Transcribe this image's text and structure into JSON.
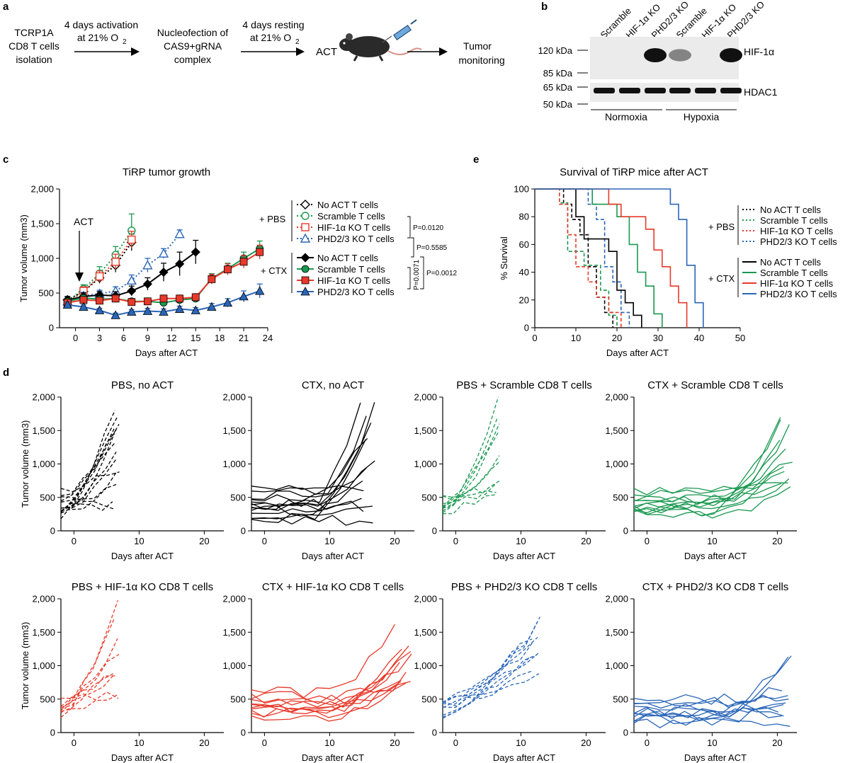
{
  "colors": {
    "black": "#000000",
    "green": "#1a9850",
    "red": "#e8392a",
    "blue": "#2a66b8",
    "axis": "#000000",
    "blot_bg": "#ebebeb",
    "band": "#111111"
  },
  "panel_a": {
    "letter": "a",
    "step1_lines": [
      "TCRP1A",
      "CD8 T cells",
      "isolation"
    ],
    "arrow1_lines": [
      "4 days activation",
      "at 21% O",
      "2"
    ],
    "step2_lines": [
      "Nucleofection of",
      "CAS9+gRNA",
      "complex"
    ],
    "arrow2_lines": [
      "4 days resting",
      "at 21% O",
      "2"
    ],
    "act_label": "ACT",
    "mouse_icon": "mouse-icon",
    "syringe_icon": "syringe-icon",
    "step3_lines": [
      "Tumor",
      "monitoring"
    ]
  },
  "panel_b": {
    "letter": "b",
    "lane_labels": [
      "Scramble",
      "HIF-1α KO",
      "PHD2/3 KO",
      "Scramble",
      "HIF-1α KO",
      "PHD2/3 KO"
    ],
    "mw_markers": [
      "120 kDa",
      "85 kDa",
      "65 kDa",
      "50 kDa"
    ],
    "protein_labels": [
      "HIF-1α",
      "HDAC1"
    ],
    "condition_labels": [
      "Normoxia",
      "Hypoxia"
    ],
    "hif_band_intensity": [
      0.0,
      0.0,
      1.0,
      0.3,
      0.0,
      1.0
    ],
    "hdac_band_intensity": [
      1,
      1,
      1,
      1,
      1,
      1
    ]
  },
  "chart_data": [
    {
      "id": "c",
      "panel_letter": "c",
      "type": "line",
      "title": "TiRP tumor growth",
      "xlabel": "Days after ACT",
      "ylabel": "Tumor volume (mm3)",
      "xlim": [
        -2,
        24
      ],
      "ylim": [
        0,
        2000
      ],
      "xticks": [
        "0",
        "3",
        "6",
        "9",
        "12",
        "15",
        "18",
        "21",
        "24"
      ],
      "yticks": [
        "0",
        "500",
        "1,000",
        "1,500",
        "2,000"
      ],
      "annotation": "ACT",
      "group_labels": [
        "+ PBS",
        "+ CTX"
      ],
      "series": [
        {
          "name": "No ACT T cells",
          "group": "PBS",
          "color_key": "black",
          "dash": true,
          "marker": "diamond_open",
          "x": [
            -1,
            1,
            3,
            5,
            7
          ],
          "y": [
            400,
            520,
            720,
            900,
            1230
          ],
          "err": [
            50,
            60,
            80,
            100,
            120
          ]
        },
        {
          "name": "Scramble T cells",
          "group": "PBS",
          "color_key": "green",
          "dash": true,
          "marker": "circle_open",
          "x": [
            -1,
            1,
            3,
            5,
            7
          ],
          "y": [
            380,
            560,
            780,
            1050,
            1400
          ],
          "err": [
            50,
            60,
            100,
            120,
            240
          ]
        },
        {
          "name": "HIF-1α KO T cells",
          "group": "PBS",
          "color_key": "red",
          "dash": true,
          "marker": "square_open",
          "x": [
            -1,
            1,
            3,
            5,
            7
          ],
          "y": [
            360,
            530,
            740,
            950,
            1270
          ],
          "err": [
            40,
            60,
            80,
            110,
            120
          ]
        },
        {
          "name": "PHD2/3 KO T cells",
          "group": "PBS",
          "color_key": "blue",
          "dash": true,
          "marker": "triangle_open",
          "x": [
            -1,
            1,
            3,
            5,
            7,
            9,
            11,
            13
          ],
          "y": [
            380,
            460,
            490,
            530,
            680,
            900,
            1070,
            1350
          ],
          "err": [
            40,
            50,
            50,
            60,
            80,
            100,
            70,
            60
          ]
        },
        {
          "name": "No ACT T cells",
          "group": "CTX",
          "color_key": "black",
          "dash": false,
          "marker": "diamond",
          "x": [
            -1,
            1,
            3,
            5,
            7,
            9,
            11,
            13,
            15
          ],
          "y": [
            400,
            450,
            470,
            460,
            530,
            630,
            800,
            920,
            1090
          ],
          "err": [
            50,
            50,
            50,
            60,
            70,
            90,
            130,
            170,
            170
          ]
        },
        {
          "name": "Scramble T cells",
          "group": "CTX",
          "color_key": "green",
          "dash": false,
          "marker": "circle",
          "x": [
            -1,
            1,
            3,
            5,
            7,
            9,
            11,
            13,
            15,
            17,
            19,
            21,
            23
          ],
          "y": [
            380,
            430,
            410,
            420,
            380,
            380,
            360,
            400,
            420,
            710,
            850,
            1000,
            1140
          ],
          "err": [
            40,
            40,
            40,
            40,
            40,
            40,
            40,
            50,
            50,
            70,
            80,
            90,
            110
          ]
        },
        {
          "name": "HIF-1α KO T cells",
          "group": "CTX",
          "color_key": "red",
          "dash": false,
          "marker": "square",
          "x": [
            -1,
            1,
            3,
            5,
            7,
            9,
            11,
            13,
            15,
            17,
            19,
            21,
            23
          ],
          "y": [
            360,
            400,
            390,
            420,
            370,
            380,
            420,
            420,
            440,
            700,
            840,
            950,
            1090
          ],
          "err": [
            40,
            40,
            40,
            50,
            40,
            40,
            50,
            50,
            50,
            70,
            80,
            90,
            100
          ]
        },
        {
          "name": "PHD2/3 KO T cells",
          "group": "CTX",
          "color_key": "blue",
          "dash": false,
          "marker": "triangle",
          "x": [
            -1,
            1,
            3,
            5,
            7,
            9,
            11,
            13,
            15,
            17,
            19,
            21,
            23
          ],
          "y": [
            330,
            300,
            250,
            180,
            230,
            240,
            230,
            270,
            250,
            300,
            360,
            450,
            530
          ],
          "err": [
            40,
            30,
            30,
            30,
            30,
            40,
            40,
            40,
            40,
            50,
            60,
            80,
            100
          ]
        }
      ],
      "pvalues": [
        "P=0.0120",
        "P=0.5585",
        "P=0.0071",
        "P=0.0012"
      ]
    },
    {
      "id": "e",
      "panel_letter": "e",
      "type": "line",
      "title": "Survival of TiRP mice after ACT",
      "xlabel": "Days after ACT",
      "ylabel": "% Survival",
      "xlim": [
        0,
        50
      ],
      "ylim": [
        0,
        100
      ],
      "xticks": [
        "0",
        "10",
        "20",
        "30",
        "40",
        "50"
      ],
      "yticks": [
        "0",
        "20",
        "40",
        "60",
        "80",
        "100"
      ],
      "group_labels": [
        "+ PBS",
        "+ CTX"
      ],
      "series": [
        {
          "name": "No ACT T cells",
          "group": "PBS",
          "color_key": "black",
          "dash": true,
          "t": [
            0,
            7,
            9,
            11,
            13,
            15,
            17,
            19
          ],
          "s": [
            100,
            89,
            78,
            67,
            44,
            22,
            11,
            0
          ]
        },
        {
          "name": "Scramble T cells",
          "group": "PBS",
          "color_key": "green",
          "dash": true,
          "t": [
            0,
            6,
            8,
            12,
            16,
            18,
            20
          ],
          "s": [
            100,
            90,
            55,
            45,
            27,
            9,
            0
          ]
        },
        {
          "name": "HIF-1α KO T cells",
          "group": "PBS",
          "color_key": "red",
          "dash": true,
          "t": [
            0,
            6,
            8,
            10,
            13,
            15,
            18,
            21
          ],
          "s": [
            100,
            89,
            67,
            44,
            33,
            22,
            11,
            0
          ]
        },
        {
          "name": "PHD2/3 KO T cells",
          "group": "PBS",
          "color_key": "blue",
          "dash": true,
          "t": [
            0,
            13,
            15,
            17,
            19,
            21,
            23
          ],
          "s": [
            100,
            89,
            78,
            44,
            33,
            11,
            0
          ]
        },
        {
          "name": "No ACT T cells",
          "group": "CTX",
          "color_key": "black",
          "dash": false,
          "t": [
            0,
            10,
            12,
            14,
            16,
            18,
            20,
            22,
            24,
            26
          ],
          "s": [
            100,
            80,
            64,
            64,
            64,
            55,
            27,
            18,
            9,
            0
          ]
        },
        {
          "name": "Scramble T cells",
          "group": "CTX",
          "color_key": "green",
          "dash": false,
          "t": [
            0,
            14,
            18,
            20,
            23,
            25,
            27,
            29,
            31
          ],
          "s": [
            100,
            89,
            89,
            80,
            60,
            40,
            30,
            10,
            0
          ]
        },
        {
          "name": "HIF-1α KO T cells",
          "group": "CTX",
          "color_key": "red",
          "dash": false,
          "t": [
            0,
            18,
            21,
            23,
            27,
            29,
            31,
            33,
            35,
            37
          ],
          "s": [
            100,
            89,
            80,
            80,
            71,
            56,
            44,
            30,
            18,
            0
          ]
        },
        {
          "name": "PHD2/3 KO T cells",
          "group": "CTX",
          "color_key": "blue",
          "dash": false,
          "t": [
            0,
            26,
            33,
            35,
            37,
            39,
            41
          ],
          "s": [
            100,
            100,
            89,
            78,
            45,
            18,
            0
          ]
        }
      ]
    }
  ],
  "panel_d": {
    "letter": "d",
    "xlabel": "Days after ACT",
    "ylabel": "Tumor volume (mm3)",
    "xlim": [
      -2,
      23
    ],
    "xticks": [
      "0",
      "10",
      "20"
    ],
    "yticks": [
      "0",
      "500",
      "1,000",
      "1,500",
      "2,000"
    ],
    "panels": [
      {
        "title": "PBS, no ACT",
        "color_key": "black",
        "dash": true,
        "seed": 11,
        "lines": [
          [
            200,
            1850
          ],
          [
            250,
            1700
          ],
          [
            300,
            1600
          ],
          [
            350,
            1500
          ],
          [
            200,
            1400
          ],
          [
            400,
            1550
          ],
          [
            500,
            1300
          ],
          [
            300,
            1200
          ],
          [
            280,
            1000
          ],
          [
            600,
            950
          ],
          [
            250,
            800
          ],
          [
            400,
            700
          ],
          [
            350,
            380
          ],
          [
            500,
            310
          ]
        ],
        "days": [
          -2,
          7
        ]
      },
      {
        "title": "CTX, no ACT",
        "color_key": "black",
        "dash": false,
        "seed": 21,
        "lines": [
          [
            300,
            1930
          ],
          [
            400,
            1840
          ],
          [
            500,
            1650
          ],
          [
            350,
            1550
          ],
          [
            600,
            1430
          ],
          [
            250,
            1300
          ],
          [
            450,
            1100
          ],
          [
            550,
            900
          ],
          [
            300,
            700
          ],
          [
            650,
            600
          ],
          [
            200,
            400
          ],
          [
            400,
            350
          ],
          [
            180,
            120
          ],
          [
            350,
            520
          ]
        ],
        "days": [
          -2,
          17
        ]
      },
      {
        "title": "PBS + Scramble CD8 T cells",
        "color_key": "green",
        "dash": true,
        "seed": 31,
        "lines": [
          [
            250,
            2000
          ],
          [
            300,
            1650
          ],
          [
            350,
            1550
          ],
          [
            400,
            1400
          ],
          [
            300,
            1050
          ],
          [
            450,
            950
          ],
          [
            350,
            700
          ],
          [
            500,
            650
          ],
          [
            300,
            560
          ],
          [
            400,
            620
          ]
        ],
        "days": [
          -2,
          7
        ]
      },
      {
        "title": "CTX + Scramble CD8 T cells",
        "color_key": "green",
        "dash": false,
        "seed": 41,
        "lines": [
          [
            300,
            1750
          ],
          [
            400,
            1620
          ],
          [
            500,
            1530
          ],
          [
            350,
            1400
          ],
          [
            450,
            1200
          ],
          [
            550,
            1050
          ],
          [
            300,
            1000
          ],
          [
            400,
            900
          ],
          [
            350,
            720
          ],
          [
            500,
            700
          ],
          [
            600,
            690
          ],
          [
            250,
            650
          ]
        ],
        "days": [
          -2,
          23
        ]
      },
      {
        "title": "PBS + HIF-1α KO CD8 T cells",
        "color_key": "red",
        "dash": true,
        "seed": 51,
        "lines": [
          [
            250,
            2000
          ],
          [
            300,
            1620
          ],
          [
            350,
            1400
          ],
          [
            400,
            1200
          ],
          [
            300,
            950
          ],
          [
            450,
            900
          ],
          [
            350,
            780
          ],
          [
            500,
            550
          ],
          [
            300,
            520
          ]
        ],
        "days": [
          -2,
          7
        ]
      },
      {
        "title": "CTX + HIF-1α KO CD8 T cells",
        "color_key": "red",
        "dash": false,
        "seed": 61,
        "lines": [
          [
            300,
            1320
          ],
          [
            400,
            1300
          ],
          [
            350,
            1250
          ],
          [
            500,
            1100
          ],
          [
            450,
            1000
          ],
          [
            300,
            850
          ],
          [
            400,
            800
          ],
          [
            550,
            780
          ],
          [
            350,
            750
          ],
          [
            250,
            700
          ],
          [
            600,
            1650
          ]
        ],
        "days": [
          -2,
          23
        ]
      },
      {
        "title": "PBS + PHD2/3 KO CD8 T cells",
        "color_key": "blue",
        "dash": true,
        "seed": 71,
        "lines": [
          [
            300,
            1650
          ],
          [
            350,
            1580
          ],
          [
            400,
            1450
          ],
          [
            450,
            1300
          ],
          [
            300,
            1200
          ],
          [
            500,
            1100
          ],
          [
            350,
            950
          ],
          [
            400,
            900
          ],
          [
            280,
            1230
          ],
          [
            450,
            1500
          ]
        ],
        "days": [
          -2,
          13
        ]
      },
      {
        "title": "CTX + PHD2/3 KO CD8 T cells",
        "color_key": "blue",
        "dash": false,
        "seed": 81,
        "lines": [
          [
            300,
            1170
          ],
          [
            250,
            1100
          ],
          [
            400,
            700
          ],
          [
            350,
            600
          ],
          [
            500,
            550
          ],
          [
            250,
            500
          ],
          [
            300,
            460
          ],
          [
            200,
            350
          ],
          [
            300,
            300
          ],
          [
            150,
            120
          ],
          [
            450,
            220
          ]
        ],
        "days": [
          -2,
          23
        ]
      }
    ]
  }
}
